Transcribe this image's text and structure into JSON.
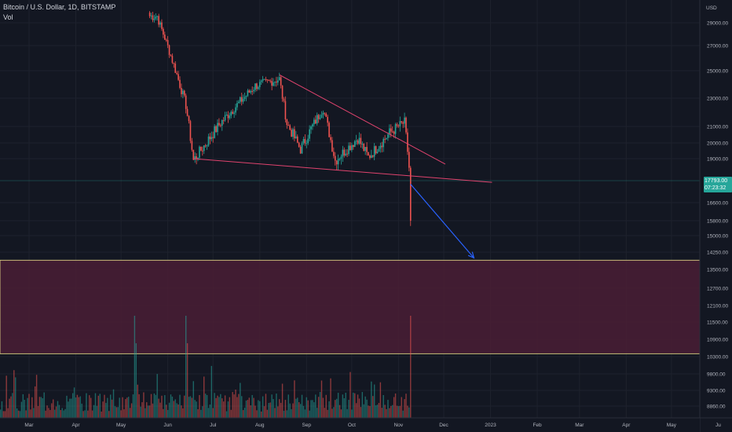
{
  "header": {
    "symbol": "Bitcoin / U.S. Dollar, 1D, BITSTAMP",
    "volume_label": "Vol"
  },
  "price_axis": {
    "currency": "USD",
    "labels": [
      "29000.00",
      "27000.00",
      "25000.00",
      "23000.00",
      "21000.00",
      "20000.00",
      "19000.00",
      "16600.00",
      "15800.00",
      "15000.00",
      "14250.00",
      "13500.00",
      "12700.00",
      "12100.00",
      "11500.00",
      "10900.00",
      "10300.00",
      "9800.00",
      "9300.00",
      "8860.00"
    ]
  },
  "current_price": {
    "value": "17793.00",
    "countdown": "07:23:32"
  },
  "time_axis": {
    "labels": [
      "Mar",
      "Apr",
      "May",
      "Jun",
      "Jul",
      "Aug",
      "Sep",
      "Oct",
      "Nov",
      "Dec",
      "2023",
      "Feb",
      "Mar",
      "Apr",
      "May",
      "Ju"
    ]
  },
  "colors": {
    "background": "#131722",
    "up": "#26a69a",
    "down": "#ef5350",
    "trendline": "#e0436e",
    "arrow": "#2962ff",
    "zone_fill": "#4a1d35",
    "zone_border": "#f0e68c"
  },
  "chart_data": {
    "type": "candlestick",
    "title": "Bitcoin / U.S. Dollar, 1D, BITSTAMP",
    "ylabel": "USD",
    "x_range": [
      "2022-05-20",
      "2022-11-09"
    ],
    "key_points": [
      {
        "date": "2022-05-25",
        "close": 29500
      },
      {
        "date": "2022-06-13",
        "close": 22500
      },
      {
        "date": "2022-06-18",
        "close": 18900
      },
      {
        "date": "2022-07-08",
        "close": 21500
      },
      {
        "date": "2022-07-29",
        "close": 23900
      },
      {
        "date": "2022-08-14",
        "close": 24400
      },
      {
        "date": "2022-08-19",
        "close": 21200
      },
      {
        "date": "2022-08-28",
        "close": 19600
      },
      {
        "date": "2022-09-12",
        "close": 22300
      },
      {
        "date": "2022-09-20",
        "close": 18900
      },
      {
        "date": "2022-10-05",
        "close": 20300
      },
      {
        "date": "2022-10-12",
        "close": 19100
      },
      {
        "date": "2022-10-26",
        "close": 20600
      },
      {
        "date": "2022-11-05",
        "close": 21300
      },
      {
        "date": "2022-11-08",
        "close": 18500
      },
      {
        "date": "2022-11-09",
        "close": 15800
      }
    ],
    "volume_highlights": [
      "2022-05-10",
      "2022-06-13",
      "2022-11-09"
    ],
    "last_price": 17793.0,
    "trendlines": [
      {
        "name": "upper",
        "from": {
          "date": "2022-08-14",
          "price": 24700
        },
        "to": {
          "date": "2022-12-02",
          "price": 18700
        }
      },
      {
        "name": "lower",
        "from": {
          "date": "2022-06-18",
          "price": 19000
        },
        "to": {
          "date": "2023-01-02",
          "price": 17700
        }
      }
    ],
    "projection_arrow": {
      "from": {
        "date": "2022-11-09",
        "price": 17600
      },
      "to": {
        "date": "2022-12-21",
        "price": 14000
      }
    },
    "target_zone": {
      "from_price": 13900,
      "to_price": 10400,
      "from_date": "2022-02-01",
      "to_date": "2023-05-25"
    }
  }
}
